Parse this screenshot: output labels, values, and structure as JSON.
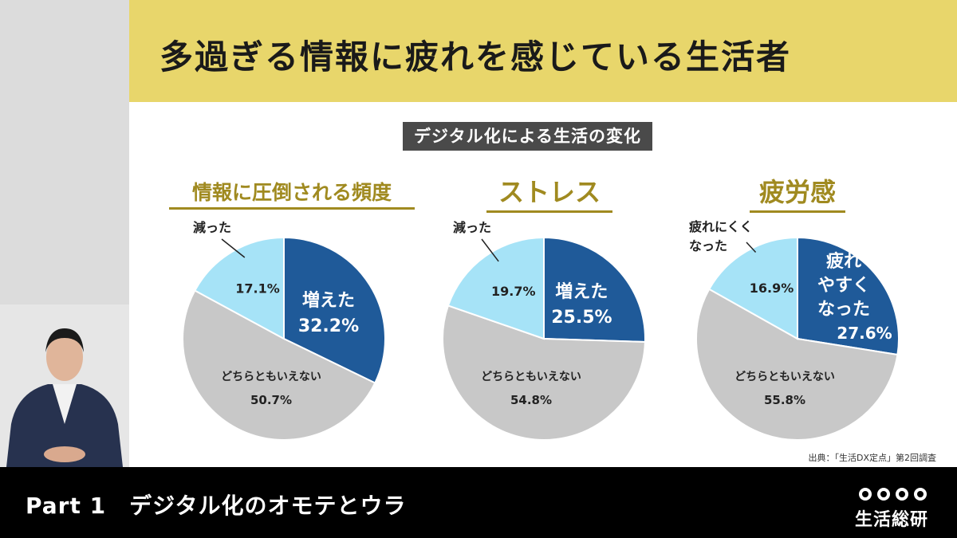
{
  "title": "多過ぎる情報に疲れを感じている生活者",
  "subtitle": "デジタル化による生活の変化",
  "source": "出典：「生活DX定点」第2回調査",
  "footer": {
    "part": "Part 1　デジタル化のオモテとウラ"
  },
  "logo": {
    "text": "生活総研"
  },
  "colors": {
    "increase": "#1f5a99",
    "neutral": "#c8c8c8",
    "decrease": "#a6e3f7",
    "header": "#e8d66b",
    "accent": "#a08a20"
  },
  "chart_data": [
    {
      "type": "pie",
      "title": "情報に圧倒される頻度",
      "slices": [
        {
          "label": "増えた",
          "value": 32.2,
          "value_label": "32.2%"
        },
        {
          "label": "どちらともいえない",
          "value": 50.7,
          "value_label": "50.7%"
        },
        {
          "label": "減った",
          "value": 17.1,
          "value_label": "17.1%"
        }
      ]
    },
    {
      "type": "pie",
      "title": "ストレス",
      "slices": [
        {
          "label": "増えた",
          "value": 25.5,
          "value_label": "25.5%"
        },
        {
          "label": "どちらともいえない",
          "value": 54.8,
          "value_label": "54.8%"
        },
        {
          "label": "減った",
          "value": 19.7,
          "value_label": "19.7%"
        }
      ]
    },
    {
      "type": "pie",
      "title": "疲労感",
      "slices": [
        {
          "label": "疲れやすくなった",
          "label_lines": [
            "疲れ",
            "やすく",
            "なった"
          ],
          "value": 27.6,
          "value_label": "27.6%"
        },
        {
          "label": "どちらともいえない",
          "value": 55.8,
          "value_label": "55.8%"
        },
        {
          "label": "疲れにくくなった",
          "label_lines": [
            "疲れにくく",
            "なった"
          ],
          "value": 16.9,
          "value_label": "16.9%"
        }
      ]
    }
  ]
}
